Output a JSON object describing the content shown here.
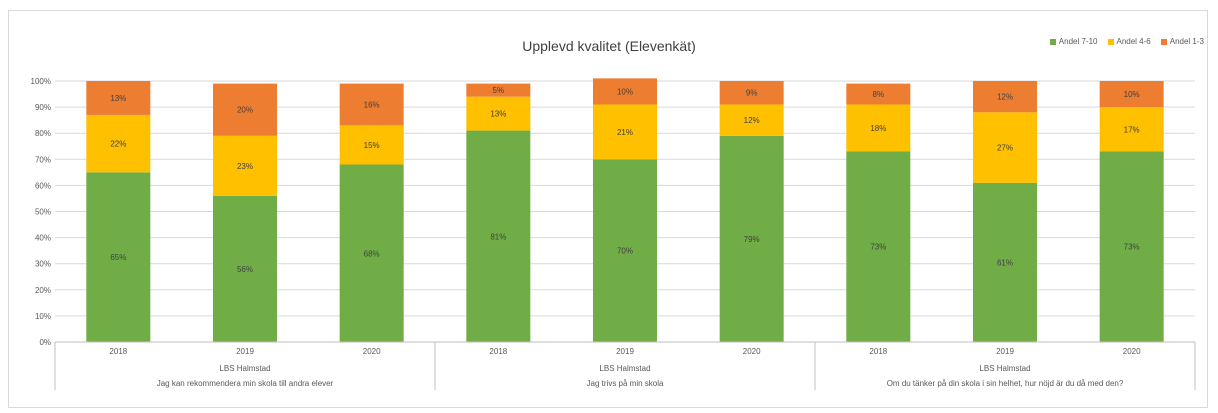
{
  "chart_data": {
    "type": "bar",
    "stacked": true,
    "title": "Upplevd kvalitet (Elevenkät)",
    "ylim": [
      0,
      100
    ],
    "yticks": [
      "0%",
      "10%",
      "20%",
      "30%",
      "40%",
      "50%",
      "60%",
      "70%",
      "80%",
      "90%",
      "100%"
    ],
    "grid": true,
    "legend_position": "top-right",
    "categories": [
      "2018",
      "2019",
      "2020",
      "2018",
      "2019",
      "2020",
      "2018",
      "2019",
      "2020"
    ],
    "group_level1": [
      "LBS Halmstad",
      "LBS Halmstad",
      "LBS Halmstad"
    ],
    "group_level2": [
      "Jag kan rekommendera min skola till andra elever",
      "Jag trivs på min skola",
      "Om du tänker på din skola i sin helhet, hur nöjd är du då med den?"
    ],
    "series": [
      {
        "name": "Andel 7-10",
        "color": "#70ad47",
        "values": [
          65,
          56,
          68,
          81,
          70,
          79,
          73,
          61,
          73
        ],
        "labels": [
          "65%",
          "56%",
          "68%",
          "81%",
          "70%",
          "79%",
          "73%",
          "61%",
          "73%"
        ]
      },
      {
        "name": "Andel 4-6",
        "color": "#ffc000",
        "values": [
          22,
          23,
          15,
          13,
          21,
          12,
          18,
          27,
          17
        ],
        "labels": [
          "22%",
          "23%",
          "15%",
          "13%",
          "21%",
          "12%",
          "18%",
          "27%",
          "17%"
        ]
      },
      {
        "name": "Andel 1-3",
        "color": "#ed7d31",
        "values": [
          13,
          20,
          16,
          5,
          10,
          9,
          8,
          12,
          10
        ],
        "labels": [
          "13%",
          "20%",
          "16%",
          "5%",
          "10%",
          "9%",
          "8%",
          "12%",
          "10%"
        ]
      }
    ]
  }
}
